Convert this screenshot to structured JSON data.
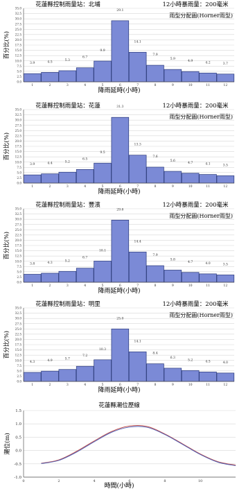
{
  "chart_data": [
    {
      "type": "bar",
      "title": "花蓮縣控制雨量站：北埔",
      "subtitle_right": "12小時暴雨量：200毫米",
      "annotation": "雨型分配圖(Horner雨型)",
      "xlabel": "降雨延時(小時)",
      "ylabel": "百分比(%)",
      "categories": [
        "1",
        "2",
        "3",
        "4",
        "5",
        "6",
        "7",
        "8",
        "9",
        "10",
        "11",
        "12"
      ],
      "values": [
        3.9,
        4.5,
        5.3,
        6.7,
        9.9,
        29.1,
        14.1,
        7.9,
        5.9,
        4.9,
        4.2,
        3.7
      ],
      "value_labels": [
        "3.9",
        "4.5",
        "5.3",
        "6.7",
        "9.9",
        "29.1",
        "14.1",
        "7.9",
        "5.9",
        "4.9",
        "4.2",
        "3.7"
      ],
      "ylim": [
        0,
        35
      ],
      "yticks": [
        "0.0",
        "2.5",
        "5.0",
        "7.5",
        "10.0",
        "12.5",
        "15.0",
        "17.5",
        "20.0",
        "22.5",
        "25.0",
        "27.5",
        "30.0",
        "32.5",
        "35.0"
      ],
      "grid": true,
      "bar_color": "#7b8ad6"
    },
    {
      "type": "bar",
      "title": "花蓮縣控制雨量站：花蓮",
      "subtitle_right": "12小時暴雨量：200毫米",
      "annotation": "雨型分配圖(Horner雨型)",
      "xlabel": "降雨延時(小時)",
      "ylabel": "百分比(%)",
      "categories": [
        "1",
        "2",
        "3",
        "4",
        "5",
        "6",
        "7",
        "8",
        "9",
        "10",
        "11",
        "12"
      ],
      "values": [
        3.9,
        4.4,
        5.2,
        6.5,
        9.5,
        31.3,
        13.3,
        7.6,
        5.6,
        4.7,
        4.1,
        3.5
      ],
      "value_labels": [
        "3.9",
        "4.4",
        "5.2",
        "6.5",
        "9.5",
        "31.3",
        "13.3",
        "7.6",
        "5.6",
        "4.7",
        "4.1",
        "3.5"
      ],
      "ylim": [
        0,
        35
      ],
      "yticks": [
        "0.0",
        "2.5",
        "5.0",
        "7.5",
        "10.0",
        "12.5",
        "15.0",
        "17.5",
        "20.0",
        "22.5",
        "25.0",
        "27.5",
        "30.0",
        "32.5",
        "35.0"
      ],
      "grid": true,
      "bar_color": "#7b8ad6"
    },
    {
      "type": "bar",
      "title": "花蓮縣控制雨量站：豐濱",
      "subtitle_right": "12小時暴雨量：200毫米",
      "annotation": "雨型分配圖(Horner雨型)",
      "xlabel": "降雨延時(小時)",
      "ylabel": "百分比(%)",
      "categories": [
        "1",
        "2",
        "3",
        "4",
        "5",
        "6",
        "7",
        "8",
        "9",
        "10",
        "11",
        "12"
      ],
      "values": [
        3.8,
        4.3,
        5.2,
        6.7,
        10.1,
        29.6,
        14.4,
        7.9,
        5.8,
        4.7,
        4.0,
        3.5
      ],
      "value_labels": [
        "3.8",
        "4.3",
        "5.2",
        "6.7",
        "10.1",
        "29.6",
        "14.4",
        "7.9",
        "5.8",
        "4.7",
        "4.0",
        "3.5"
      ],
      "ylim": [
        0,
        35
      ],
      "yticks": [
        "0.0",
        "2.5",
        "5.0",
        "7.5",
        "10.0",
        "12.5",
        "15.0",
        "17.5",
        "20.0",
        "22.5",
        "25.0",
        "27.5",
        "30.0",
        "32.5",
        "35.0"
      ],
      "grid": true,
      "bar_color": "#7b8ad6"
    },
    {
      "type": "bar",
      "title": "花蓮縣控制雨量站：明里",
      "subtitle_right": "12小時暴雨量：200毫米",
      "annotation": "雨型分配圖(Horner雨型)",
      "xlabel": "降雨延時(小時)",
      "ylabel": "百分比(%)",
      "categories": [
        "1",
        "2",
        "3",
        "4",
        "5",
        "6",
        "7",
        "8",
        "9",
        "10",
        "11",
        "12"
      ],
      "values": [
        4.3,
        4.9,
        5.7,
        7.2,
        10.3,
        25.0,
        14.1,
        8.4,
        6.3,
        5.2,
        4.5,
        4.0
      ],
      "value_labels": [
        "4.3",
        "4.9",
        "5.7",
        "7.2",
        "10.3",
        "25.0",
        "14.1",
        "8.4",
        "6.3",
        "5.2",
        "4.5",
        "4.0"
      ],
      "ylim": [
        0,
        35
      ],
      "yticks": [
        "0.0",
        "2.5",
        "5.0",
        "7.5",
        "10.0",
        "12.5",
        "15.0",
        "17.5",
        "20.0",
        "22.5",
        "25.0",
        "27.5",
        "30.0",
        "32.5",
        "35.0"
      ],
      "grid": true,
      "bar_color": "#7b8ad6"
    },
    {
      "type": "line",
      "title": "花蓮縣潮位歷線",
      "xlabel": "時間(小時)",
      "ylabel": "潮位(m)",
      "xlim": [
        0,
        12
      ],
      "ylim": [
        -1.0,
        1.5
      ],
      "xticks": [
        "0",
        "2",
        "4",
        "6",
        "8",
        "10"
      ],
      "yticks": [
        "-1.0",
        "-0.5",
        "0.0",
        "0.5",
        "1.0",
        "1.5"
      ],
      "grid": true,
      "series": [
        {
          "color": "#c0504d",
          "x": [
            1,
            2,
            3,
            4,
            5,
            6,
            7,
            8,
            9,
            10,
            11,
            12
          ],
          "y": [
            -0.48,
            -0.35,
            -0.03,
            0.36,
            0.72,
            0.92,
            0.9,
            0.62,
            0.25,
            -0.13,
            -0.42,
            -0.55
          ]
        },
        {
          "color": "#4f5fb5",
          "x": [
            1,
            2,
            3,
            4,
            5,
            6,
            7,
            8,
            9,
            10,
            11,
            12
          ],
          "y": [
            -0.49,
            -0.37,
            -0.06,
            0.33,
            0.69,
            0.88,
            0.87,
            0.6,
            0.23,
            -0.15,
            -0.44,
            -0.57
          ]
        }
      ]
    }
  ]
}
